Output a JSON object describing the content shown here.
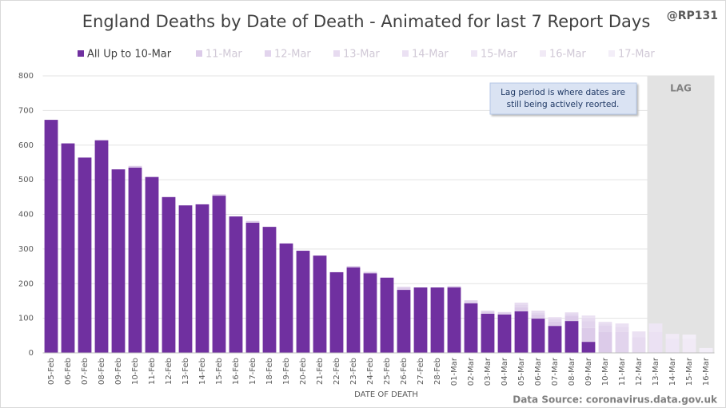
{
  "chart_data": {
    "type": "stacked_bar",
    "title": "England Deaths by Date of Death - Animated for last 7 Report Days",
    "handle": "@RP131",
    "x_label": "DATE OF DEATH",
    "source": "Data Source: coronavirus.data.gov.uk",
    "note": [
      "Lag period is where dates are",
      "still being actively reorted."
    ],
    "lag": {
      "label": "LAG",
      "start": "13-Mar"
    },
    "categories": [
      "05-Feb",
      "06-Feb",
      "07-Feb",
      "08-Feb",
      "09-Feb",
      "10-Feb",
      "11-Feb",
      "12-Feb",
      "13-Feb",
      "14-Feb",
      "15-Feb",
      "16-Feb",
      "17-Feb",
      "18-Feb",
      "19-Feb",
      "20-Feb",
      "21-Feb",
      "22-Feb",
      "23-Feb",
      "24-Feb",
      "25-Feb",
      "26-Feb",
      "27-Feb",
      "28-Feb",
      "01-Mar",
      "02-Mar",
      "03-Mar",
      "04-Mar",
      "05-Mar",
      "06-Mar",
      "07-Mar",
      "08-Mar",
      "09-Mar",
      "10-Mar",
      "11-Mar",
      "12-Mar",
      "13-Mar",
      "14-Mar",
      "15-Mar",
      "16-Mar"
    ],
    "series": [
      {
        "name": "All Up to 10-Mar",
        "color": "#7030a0",
        "values": [
          673,
          605,
          564,
          614,
          530,
          535,
          508,
          450,
          426,
          429,
          454,
          394,
          376,
          364,
          316,
          295,
          281,
          233,
          247,
          230,
          217,
          182,
          189,
          189,
          189,
          143,
          113,
          111,
          120,
          99,
          78,
          92,
          32,
          null,
          null,
          null,
          null,
          null,
          null,
          null
        ]
      },
      {
        "name": "11-Mar",
        "color": "#dccbe9",
        "values": [
          null,
          null,
          null,
          null,
          null,
          5,
          null,
          null,
          null,
          null,
          4,
          null,
          5,
          null,
          null,
          null,
          null,
          null,
          4,
          4,
          2,
          6,
          null,
          null,
          4,
          6,
          6,
          4,
          12,
          12,
          12,
          14,
          40,
          60,
          null,
          null,
          null,
          null,
          null,
          null
        ]
      },
      {
        "name": "12-Mar",
        "color": "#e2d4ed",
        "values": [
          null,
          null,
          null,
          null,
          null,
          null,
          null,
          null,
          null,
          null,
          null,
          null,
          null,
          null,
          null,
          null,
          null,
          null,
          null,
          null,
          null,
          3,
          null,
          null,
          null,
          3,
          3,
          3,
          8,
          6,
          7,
          6,
          20,
          20,
          60,
          null,
          null,
          null,
          null,
          null
        ]
      },
      {
        "name": "13-Mar",
        "color": "#e7dbf0",
        "values": [
          null,
          null,
          null,
          null,
          null,
          null,
          null,
          null,
          null,
          null,
          null,
          null,
          null,
          null,
          null,
          null,
          null,
          null,
          null,
          null,
          null,
          null,
          null,
          null,
          null,
          null,
          null,
          null,
          5,
          5,
          6,
          5,
          10,
          6,
          15,
          45,
          null,
          null,
          null,
          null
        ]
      },
      {
        "name": "14-Mar",
        "color": "#ebe1f3",
        "values": [
          null,
          null,
          null,
          null,
          null,
          null,
          null,
          null,
          null,
          null,
          null,
          null,
          null,
          null,
          null,
          null,
          null,
          null,
          null,
          null,
          null,
          null,
          null,
          null,
          null,
          null,
          null,
          null,
          null,
          null,
          null,
          null,
          6,
          4,
          10,
          17,
          60,
          null,
          null,
          null
        ]
      },
      {
        "name": "15-Mar",
        "color": "#eee6f5",
        "values": [
          null,
          null,
          null,
          null,
          null,
          null,
          null,
          null,
          null,
          null,
          null,
          null,
          null,
          null,
          null,
          null,
          null,
          null,
          null,
          null,
          null,
          null,
          null,
          null,
          null,
          null,
          null,
          null,
          null,
          null,
          null,
          null,
          null,
          null,
          null,
          null,
          25,
          40,
          null,
          null
        ]
      },
      {
        "name": "16-Mar",
        "color": "#f1eaf6",
        "values": [
          null,
          null,
          null,
          null,
          null,
          null,
          null,
          null,
          null,
          null,
          null,
          null,
          null,
          null,
          null,
          null,
          null,
          null,
          null,
          null,
          null,
          null,
          null,
          null,
          null,
          null,
          null,
          null,
          null,
          null,
          null,
          null,
          null,
          null,
          null,
          null,
          null,
          15,
          40,
          null
        ]
      },
      {
        "name": "17-Mar",
        "color": "#f3eef8",
        "values": [
          null,
          null,
          null,
          null,
          null,
          null,
          null,
          null,
          null,
          null,
          null,
          null,
          null,
          null,
          null,
          null,
          null,
          null,
          null,
          null,
          null,
          null,
          null,
          null,
          null,
          null,
          null,
          null,
          null,
          null,
          null,
          null,
          null,
          null,
          null,
          null,
          null,
          null,
          13,
          14
        ]
      }
    ],
    "ylim": [
      0,
      800
    ],
    "yticks": [
      0,
      100,
      200,
      300,
      400,
      500,
      600,
      700,
      800
    ],
    "grid": true
  }
}
